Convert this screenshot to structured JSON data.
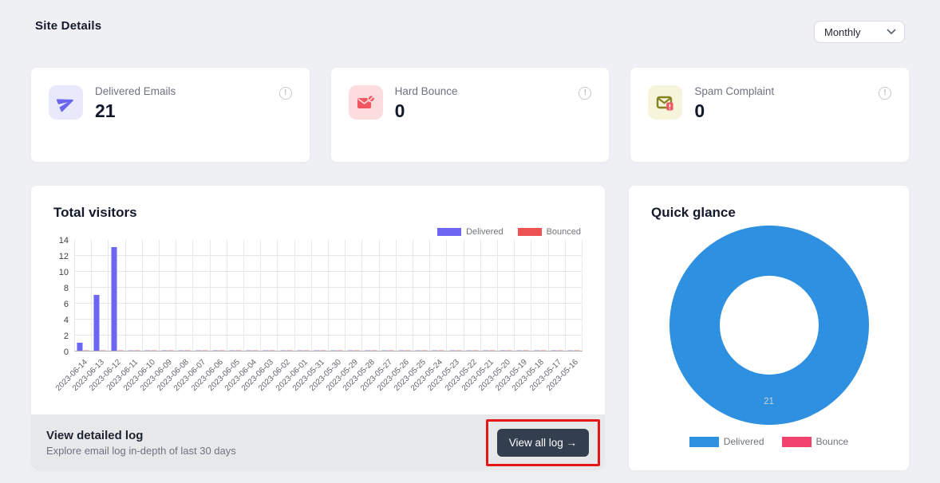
{
  "page": {
    "title": "Site Details"
  },
  "period_filter": {
    "selected": "Monthly"
  },
  "stat_cards": [
    {
      "label": "Delivered Emails",
      "value": "21",
      "icon": "send-icon",
      "tile_bg": "#e8eafc",
      "icon_color": "#6b66f0",
      "info_icon": "info-icon"
    },
    {
      "label": "Hard Bounce",
      "value": "0",
      "icon": "mail-blocked-icon",
      "tile_bg": "#fcdcdd",
      "icon_color": "#ef5660",
      "info_icon": "info-icon"
    },
    {
      "label": "Spam Complaint",
      "value": "0",
      "icon": "mail-alert-icon",
      "tile_bg": "#f6f4db",
      "icon_color": "#878220",
      "badge_color": "#ef5660",
      "info_icon": "info-icon"
    }
  ],
  "visitors_card": {
    "title": "Total visitors",
    "footer": {
      "heading": "View detailed log",
      "subtext": "Explore email log in-depth of last 30 days",
      "button_label": "View all log →"
    }
  },
  "quick_glance_card": {
    "title": "Quick glance",
    "center_label": "21"
  },
  "annotation": {
    "highlight_color": "#e51616"
  },
  "chart_data": [
    {
      "type": "bar",
      "title": "Total visitors",
      "categories": [
        "2023-06-14",
        "2023-06-13",
        "2023-06-12",
        "2023-06-11",
        "2023-06-10",
        "2023-06-09",
        "2023-06-08",
        "2023-06-07",
        "2023-06-06",
        "2023-06-05",
        "2023-06-04",
        "2023-06-03",
        "2023-06-02",
        "2023-06-01",
        "2023-05-31",
        "2023-05-30",
        "2023-05-29",
        "2023-05-28",
        "2023-05-27",
        "2023-05-26",
        "2023-05-25",
        "2023-05-24",
        "2023-05-23",
        "2023-05-22",
        "2023-05-21",
        "2023-05-20",
        "2023-05-19",
        "2023-05-18",
        "2023-05-17",
        "2023-05-16"
      ],
      "series": [
        {
          "name": "Delivered",
          "color": "#6c66f2",
          "values": [
            1,
            7,
            13,
            0,
            0,
            0,
            0,
            0,
            0,
            0,
            0,
            0,
            0,
            0,
            0,
            0,
            0,
            0,
            0,
            0,
            0,
            0,
            0,
            0,
            0,
            0,
            0,
            0,
            0,
            0
          ]
        },
        {
          "name": "Bounced",
          "color": "#ee5253",
          "values": [
            0,
            0,
            0,
            0,
            0,
            0,
            0,
            0,
            0,
            0,
            0,
            0,
            0,
            0,
            0,
            0,
            0,
            0,
            0,
            0,
            0,
            0,
            0,
            0,
            0,
            0,
            0,
            0,
            0,
            0
          ]
        }
      ],
      "xlabel": "",
      "ylabel": "",
      "ylim": [
        0,
        14
      ],
      "yticks": [
        0,
        2,
        4,
        6,
        8,
        10,
        12,
        14
      ],
      "grid": true,
      "legend_position": "top-right"
    },
    {
      "type": "pie",
      "donut": true,
      "title": "Quick glance",
      "labels": [
        "Delivered",
        "Bounce"
      ],
      "values": [
        21,
        0
      ],
      "colors": [
        "#2e90e0",
        "#f2426e"
      ],
      "center_label": "21",
      "legend_position": "bottom"
    }
  ]
}
